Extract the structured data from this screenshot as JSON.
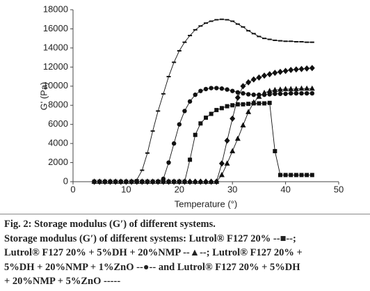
{
  "chart_data": {
    "type": "line",
    "x_label": "Temperature (°)",
    "y_label": "G' (Pa)",
    "xlim": [
      0,
      50
    ],
    "xticks": [
      0,
      10,
      20,
      30,
      40,
      50
    ],
    "ylim": [
      0,
      18000
    ],
    "yticks": [
      0,
      2000,
      4000,
      6000,
      8000,
      10000,
      12000,
      14000,
      16000,
      18000
    ],
    "x": [
      4,
      5,
      6,
      7,
      8,
      9,
      10,
      11,
      12,
      13,
      14,
      15,
      16,
      17,
      18,
      19,
      20,
      21,
      22,
      23,
      24,
      25,
      26,
      27,
      28,
      29,
      30,
      31,
      32,
      33,
      34,
      35,
      36,
      37,
      38,
      39,
      40,
      41,
      42,
      43,
      44,
      45
    ],
    "series": [
      {
        "marker": "dash",
        "color": "#111111",
        "values": [
          0,
          0,
          0,
          0,
          0,
          0,
          0,
          0,
          200,
          1200,
          3000,
          5300,
          7400,
          9200,
          11000,
          12500,
          13700,
          14600,
          15300,
          15900,
          16300,
          16600,
          16800,
          16950,
          17000,
          16950,
          16800,
          16500,
          16200,
          15800,
          15500,
          15200,
          15000,
          14900,
          14800,
          14750,
          14700,
          14700,
          14650,
          14650,
          14600,
          14600
        ]
      },
      {
        "marker": "square",
        "color": "#111111",
        "values": [
          0,
          0,
          0,
          0,
          0,
          0,
          0,
          0,
          0,
          0,
          0,
          0,
          0,
          0,
          0,
          0,
          0,
          0,
          2300,
          4900,
          6100,
          6700,
          7100,
          7500,
          7700,
          7900,
          8000,
          8100,
          8100,
          8150,
          8200,
          8200,
          8200,
          8250,
          3200,
          700,
          700,
          700,
          700,
          700,
          700,
          700
        ]
      },
      {
        "marker": "circle",
        "color": "#111111",
        "values": [
          0,
          0,
          0,
          0,
          0,
          0,
          0,
          0,
          0,
          0,
          0,
          0,
          0,
          300,
          2000,
          4000,
          6000,
          7400,
          8400,
          9100,
          9500,
          9700,
          9800,
          9800,
          9750,
          9650,
          9500,
          9350,
          9250,
          9150,
          9100,
          9100,
          9100,
          9150,
          9200,
          9200,
          9200,
          9250,
          9250,
          9250,
          9250,
          9250
        ]
      },
      {
        "marker": "diamond",
        "color": "#111111",
        "values": [
          0,
          0,
          0,
          0,
          0,
          0,
          0,
          0,
          0,
          0,
          0,
          0,
          0,
          0,
          0,
          0,
          0,
          0,
          0,
          0,
          0,
          0,
          0,
          0,
          1900,
          4300,
          6600,
          8800,
          10000,
          10400,
          10700,
          10900,
          11100,
          11250,
          11400,
          11500,
          11600,
          11700,
          11750,
          11800,
          11850,
          11900
        ]
      },
      {
        "marker": "triangle",
        "color": "#111111",
        "values": [
          0,
          0,
          0,
          0,
          0,
          0,
          0,
          0,
          0,
          0,
          0,
          0,
          0,
          0,
          0,
          0,
          0,
          0,
          0,
          0,
          0,
          0,
          0,
          0,
          700,
          1900,
          3200,
          4500,
          5900,
          7300,
          8300,
          8900,
          9300,
          9500,
          9600,
          9650,
          9700,
          9700,
          9700,
          9750,
          9750,
          9750
        ]
      }
    ],
    "caption": [
      "Fig. 2: Storage modulus (G′) of different systems.",
      "Storage modulus (G′) of different systems: Lutrol® F127 20% --■--;",
      "Lutrol® F127 20% + 5%DH + 20%NMP --▲--; Lutrol® F127 20% +",
      "5%DH + 20%NMP + 1%ZnO --●-- and Lutrol® F127 20% + 5%DH",
      "+ 20%NMP + 5%ZnO -----"
    ]
  }
}
